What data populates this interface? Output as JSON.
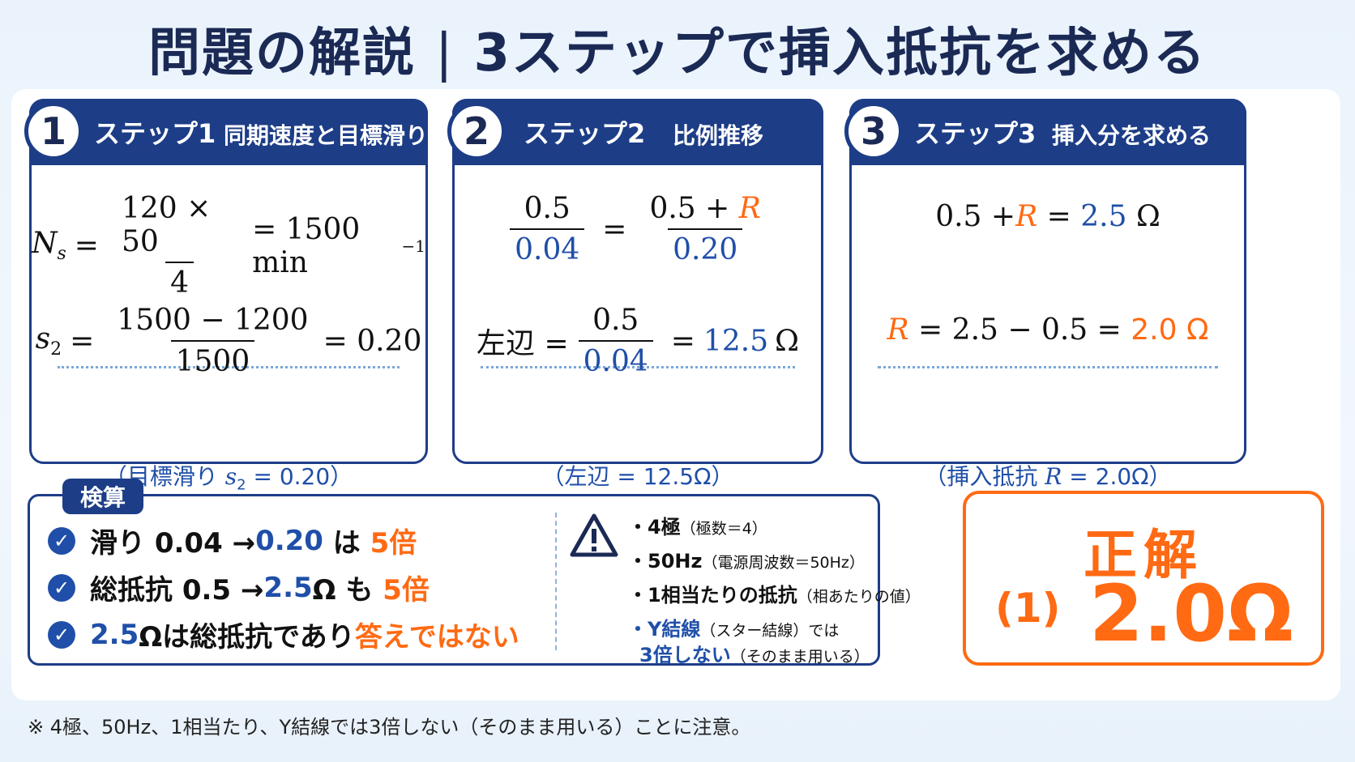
{
  "title": {
    "left": "問題の解説",
    "separator": "|",
    "right": "3ステップで挿入抵抗を求める"
  },
  "steps": [
    {
      "num": "1",
      "label": "ステップ1",
      "subtitle": "同期速度と目標滑り",
      "eq1": {
        "lhs": "N",
        "lhs_sub": "s",
        "num": "120 × 50",
        "den": "4",
        "rhs": "= 1500 min",
        "rhs_sup": "−1"
      },
      "eq2": {
        "lhs": "s",
        "lhs_sub": "2",
        "num": "1500 − 1200",
        "den": "1500",
        "rhs": "= 0.20"
      },
      "note": {
        "open": "（目標滑り ",
        "var": "s",
        "var_sub": "2",
        "rest": " = 0.20）"
      }
    },
    {
      "num": "2",
      "label": "ステップ2",
      "subtitle": "比例推移",
      "eq1": {
        "num1": "0.5",
        "den1": "0.04",
        "eq": "=",
        "num2_a": "0.5 + ",
        "num2_r": "R",
        "den2": "0.20"
      },
      "eq2": {
        "lhs": "左辺 =",
        "num": "0.5",
        "den": "0.04",
        "eq": "=",
        "val": "12.5",
        "unit": "Ω"
      },
      "note": "（左辺 = 12.5Ω）"
    },
    {
      "num": "3",
      "label": "ステップ3",
      "subtitle": "挿入分を求める",
      "eq1": {
        "a": "0.5 + ",
        "r": "R",
        "b": " = ",
        "val": "2.5",
        "unit": " Ω"
      },
      "eq2": {
        "r": "R",
        "mid": " = 2.5 − 0.5 = ",
        "val": "2.0 Ω"
      },
      "note": {
        "open": "（挿入抵抗 ",
        "var": "R",
        "rest": " = 2.0Ω）"
      }
    }
  ],
  "check": {
    "tag": "検算",
    "rows": [
      {
        "a": "滑り 0.04 → ",
        "b": "0.20",
        "c": " は ",
        "d": "5倍"
      },
      {
        "a": "総抵抗 0.5 → ",
        "b": "2.5",
        "c": "Ω も ",
        "d": "5倍"
      },
      {
        "a": "",
        "b": "2.5",
        "c": "Ωは総抵抗であり",
        "d": "答えではない"
      }
    ],
    "bullets": [
      {
        "main": "・4極",
        "small": "（極数＝4）"
      },
      {
        "main": "・50Hz",
        "small": "（電源周波数＝50Hz）"
      },
      {
        "main": "・1相当たりの抵抗",
        "small": "（相あたりの値）"
      },
      {
        "main": "・Y結線",
        "small": "（スター結線）では"
      },
      {
        "main": "3倍しない",
        "small": "（そのまま用いる）"
      }
    ]
  },
  "answer": {
    "title": "正解",
    "choice": "(1)",
    "value": "2.0Ω"
  },
  "footnote": "※ 4極、50Hz、1相当たり、Y結線では3倍しない（そのまま用いる）ことに注意。",
  "colors": {
    "navy": "#1d3d87",
    "orange": "#ff6a13",
    "blue": "#1f4fa8"
  },
  "icons": {
    "check": "check-circle-icon",
    "warning": "warning-triangle-icon"
  }
}
